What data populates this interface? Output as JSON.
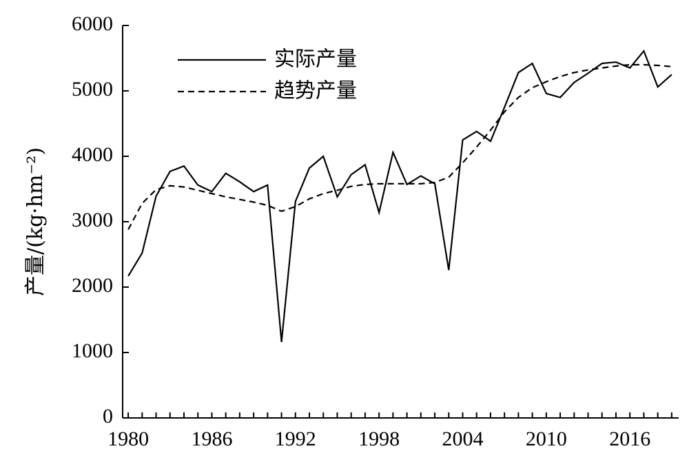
{
  "chart_data": {
    "type": "line",
    "title": "",
    "xlabel": "",
    "ylabel": "产量/(kg·hm⁻²)",
    "ylim": [
      0,
      6000
    ],
    "xlim": [
      1980,
      2018
    ],
    "x_tick_labels": [
      "1980",
      "1986",
      "1992",
      "1998",
      "2004",
      "2010",
      "2016"
    ],
    "y_tick_labels": [
      "0",
      "1000",
      "2000",
      "3000",
      "4000",
      "5000",
      "6000"
    ],
    "legend_position": "top-left",
    "grid": false,
    "series": [
      {
        "name": "实际产量",
        "style": "solid",
        "x": [
          1980,
          1981,
          1982,
          1983,
          1984,
          1985,
          1986,
          1987,
          1988,
          1989,
          1990,
          1991,
          1992,
          1993,
          1994,
          1995,
          1996,
          1997,
          1998,
          1999,
          2000,
          2001,
          2002,
          2003,
          2004,
          2005,
          2006,
          2007,
          2008,
          2009,
          2010,
          2011,
          2012,
          2013,
          2014,
          2015,
          2016,
          2017,
          2018,
          2019
        ],
        "values": [
          2170,
          2520,
          3390,
          3770,
          3850,
          3560,
          3460,
          3740,
          3610,
          3460,
          3560,
          1160,
          3310,
          3820,
          4000,
          3380,
          3720,
          3870,
          3140,
          4060,
          3570,
          3700,
          3580,
          2260,
          4250,
          4380,
          4230,
          4750,
          5280,
          5420,
          4960,
          4900,
          5130,
          5270,
          5420,
          5440,
          5350,
          5610,
          5060,
          5250
        ]
      },
      {
        "name": "趋势产量",
        "style": "dashed",
        "x": [
          1980,
          1981,
          1982,
          1983,
          1984,
          1985,
          1986,
          1987,
          1988,
          1989,
          1990,
          1991,
          1992,
          1993,
          1994,
          1995,
          1996,
          1997,
          1998,
          1999,
          2000,
          2001,
          2002,
          2003,
          2004,
          2005,
          2006,
          2007,
          2008,
          2009,
          2010,
          2011,
          2012,
          2013,
          2014,
          2015,
          2016,
          2017,
          2018,
          2019
        ],
        "values": [
          2880,
          3280,
          3490,
          3550,
          3530,
          3480,
          3430,
          3380,
          3340,
          3300,
          3250,
          3160,
          3230,
          3350,
          3430,
          3480,
          3540,
          3570,
          3580,
          3580,
          3580,
          3580,
          3600,
          3680,
          3900,
          4140,
          4400,
          4680,
          4900,
          5050,
          5140,
          5220,
          5280,
          5320,
          5350,
          5380,
          5400,
          5400,
          5390,
          5370
        ]
      }
    ]
  }
}
